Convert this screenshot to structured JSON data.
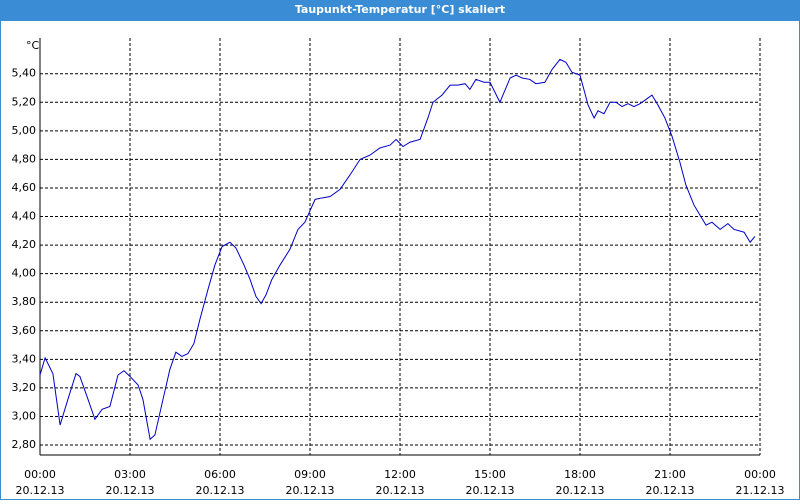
{
  "chart_data": {
    "type": "line",
    "title": "Taupunkt-Temperatur [°C] skaliert",
    "y_unit": "°C",
    "x": [
      0,
      0.17,
      0.43,
      0.67,
      0.93,
      1.2,
      1.33,
      1.6,
      1.83,
      2.07,
      2.33,
      2.6,
      2.8,
      3,
      3.27,
      3.43,
      3.67,
      3.83,
      4.1,
      4.33,
      4.53,
      4.73,
      4.93,
      5.13,
      5.33,
      5.6,
      5.83,
      6.07,
      6.33,
      6.53,
      6.8,
      7,
      7.2,
      7.37,
      7.53,
      7.73,
      8,
      8.33,
      8.6,
      8.83,
      9.17,
      9.4,
      9.67,
      10,
      10.33,
      10.67,
      11,
      11.33,
      11.67,
      11.87,
      12.1,
      12.33,
      12.67,
      12.93,
      13.1,
      13.4,
      13.67,
      13.93,
      14.17,
      14.33,
      14.53,
      14.8,
      15,
      15.33,
      15.67,
      15.87,
      16.07,
      16.33,
      16.53,
      16.83,
      17.07,
      17.33,
      17.53,
      17.73,
      18,
      18.27,
      18.47,
      18.6,
      18.8,
      19,
      19.2,
      19.4,
      19.6,
      19.8,
      20,
      20.2,
      20.4,
      20.6,
      20.83,
      21.07,
      21.33,
      21.53,
      21.8,
      22,
      22.2,
      22.4,
      22.67,
      22.93,
      23.13,
      23.47,
      23.67,
      23.83
    ],
    "series": [
      {
        "name": "Taupunkt",
        "color": "#0000c8",
        "values": [
          3.29,
          3.41,
          3.3,
          2.94,
          3.12,
          3.3,
          3.28,
          3.12,
          2.98,
          3.05,
          3.07,
          3.29,
          3.32,
          3.28,
          3.22,
          3.12,
          2.84,
          2.87,
          3.12,
          3.33,
          3.45,
          3.42,
          3.44,
          3.51,
          3.68,
          3.89,
          4.06,
          4.19,
          4.22,
          4.18,
          4.06,
          3.96,
          3.84,
          3.79,
          3.85,
          3.96,
          4.06,
          4.17,
          4.31,
          4.36,
          4.52,
          4.53,
          4.54,
          4.59,
          4.69,
          4.8,
          4.83,
          4.88,
          4.9,
          4.94,
          4.89,
          4.92,
          4.94,
          5.09,
          5.2,
          5.25,
          5.32,
          5.32,
          5.33,
          5.29,
          5.36,
          5.34,
          5.34,
          5.2,
          5.37,
          5.39,
          5.37,
          5.36,
          5.33,
          5.34,
          5.43,
          5.5,
          5.48,
          5.41,
          5.39,
          5.18,
          5.09,
          5.14,
          5.12,
          5.2,
          5.2,
          5.17,
          5.19,
          5.17,
          5.19,
          5.22,
          5.25,
          5.18,
          5.09,
          4.96,
          4.78,
          4.62,
          4.48,
          4.41,
          4.34,
          4.36,
          4.31,
          4.35,
          4.31,
          4.29,
          4.22,
          4.26
        ]
      }
    ],
    "xlim": [
      0,
      24
    ],
    "ylim": [
      2.73,
      5.65
    ],
    "xticks": [
      {
        "value": 0,
        "label": "00:00",
        "date": "20.12.13"
      },
      {
        "value": 3,
        "label": "03:00",
        "date": "20.12.13"
      },
      {
        "value": 6,
        "label": "06:00",
        "date": "20.12.13"
      },
      {
        "value": 9,
        "label": "09:00",
        "date": "20.12.13"
      },
      {
        "value": 12,
        "label": "12:00",
        "date": "20.12.13"
      },
      {
        "value": 15,
        "label": "15:00",
        "date": "20.12.13"
      },
      {
        "value": 18,
        "label": "18:00",
        "date": "20.12.13"
      },
      {
        "value": 21,
        "label": "21:00",
        "date": "20.12.13"
      },
      {
        "value": 24,
        "label": "00:00",
        "date": "21.12.13"
      }
    ],
    "yticks": [
      {
        "value": 2.8,
        "label": "2,80"
      },
      {
        "value": 3.0,
        "label": "3,00"
      },
      {
        "value": 3.2,
        "label": "3,20"
      },
      {
        "value": 3.4,
        "label": "3,40"
      },
      {
        "value": 3.6,
        "label": "3,60"
      },
      {
        "value": 3.8,
        "label": "3,80"
      },
      {
        "value": 4.0,
        "label": "4,00"
      },
      {
        "value": 4.2,
        "label": "4,20"
      },
      {
        "value": 4.4,
        "label": "4,40"
      },
      {
        "value": 4.6,
        "label": "4,60"
      },
      {
        "value": 4.8,
        "label": "4,80"
      },
      {
        "value": 5.0,
        "label": "5,00"
      },
      {
        "value": 5.2,
        "label": "5,20"
      },
      {
        "value": 5.4,
        "label": "5,40"
      }
    ],
    "grid": true
  }
}
